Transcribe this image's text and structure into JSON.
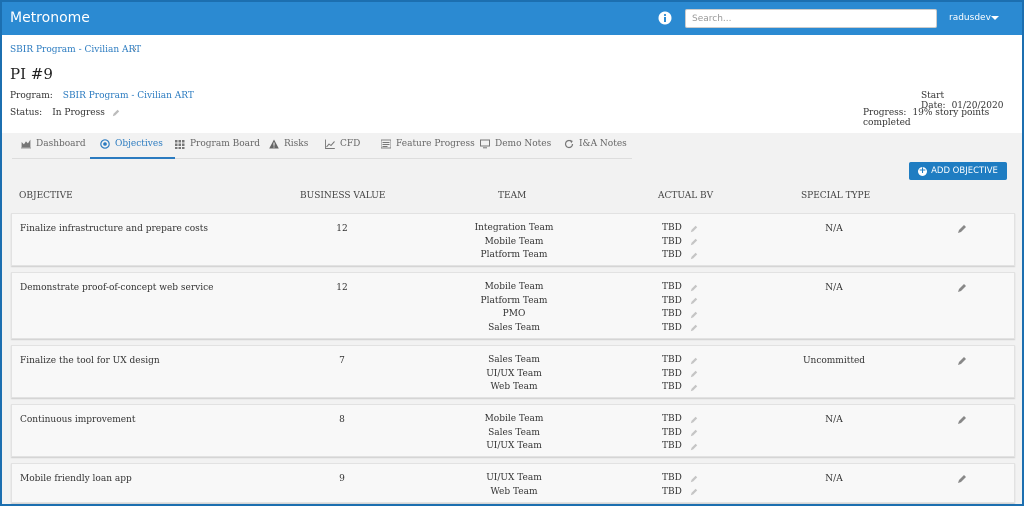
{
  "app": {
    "title": "Metronome",
    "user": "radusdev"
  },
  "search": {
    "placeholder": "Search..."
  },
  "breadcrumb": {
    "program": "SBIR Program - Civilian ART"
  },
  "page": {
    "title": "PI #9",
    "program_label": "Program:",
    "program_value": "SBIR Program - Civilian ART",
    "status_label": "Status:",
    "status_value": "In Progress",
    "start_label": "Start Date:",
    "start_value": "01/20/2020",
    "progress_label": "Progress:",
    "progress_value": "19% story points completed"
  },
  "tabs": [
    {
      "label": "Dashboard"
    },
    {
      "label": "Objectives"
    },
    {
      "label": "Program Board"
    },
    {
      "label": "Risks"
    },
    {
      "label": "CFD"
    },
    {
      "label": "Feature Progress"
    },
    {
      "label": "Demo Notes"
    },
    {
      "label": "I&A Notes"
    }
  ],
  "active_tab": "Objectives",
  "add_button": {
    "label": "ADD OBJECTIVE"
  },
  "columns": {
    "objective": "OBJECTIVE",
    "business_value": "BUSINESS VALUE",
    "team": "TEAM",
    "actual_bv": "ACTUAL BV",
    "special_type": "SPECIAL TYPE"
  },
  "objectives": [
    {
      "name": "Finalize infrastructure and prepare costs",
      "business_value": "12",
      "teams": [
        "Integration Team",
        "Mobile Team",
        "Platform Team"
      ],
      "actual_bv": [
        "TBD",
        "TBD",
        "TBD"
      ],
      "special_type": "N/A"
    },
    {
      "name": "Demonstrate proof-of-concept web service",
      "business_value": "12",
      "teams": [
        "Mobile Team",
        "Platform Team",
        "PMO",
        "Sales Team"
      ],
      "actual_bv": [
        "TBD",
        "TBD",
        "TBD",
        "TBD"
      ],
      "special_type": "N/A"
    },
    {
      "name": "Finalize the tool for UX design",
      "business_value": "7",
      "teams": [
        "Sales Team",
        "UI/UX Team",
        "Web Team"
      ],
      "actual_bv": [
        "TBD",
        "TBD",
        "TBD"
      ],
      "special_type": "Uncommitted"
    },
    {
      "name": "Continuous improvement",
      "business_value": "8",
      "teams": [
        "Mobile Team",
        "Sales Team",
        "UI/UX Team"
      ],
      "actual_bv": [
        "TBD",
        "TBD",
        "TBD"
      ],
      "special_type": "N/A"
    },
    {
      "name": "Mobile friendly loan app",
      "business_value": "9",
      "teams": [
        "UI/UX Team",
        "Web Team"
      ],
      "actual_bv": [
        "TBD",
        "TBD"
      ],
      "special_type": "N/A"
    }
  ],
  "colors": {
    "topbar": "#2b8ad2",
    "accent": "#2b7bc0",
    "button": "#1f7dc2"
  }
}
